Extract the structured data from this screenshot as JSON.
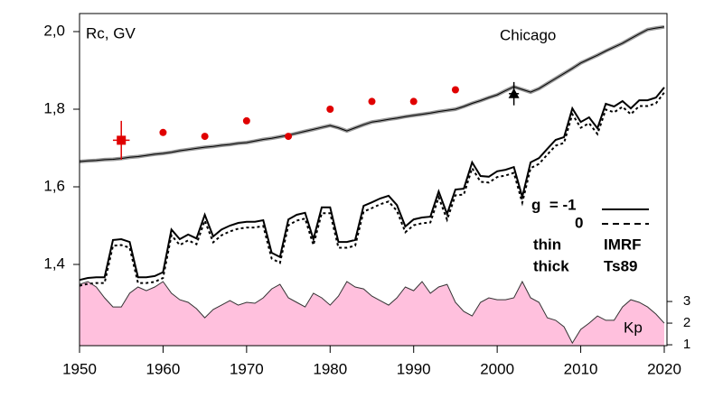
{
  "chart_data": {
    "type": "line",
    "annotations": {
      "ylabel": "Rc, GV",
      "station": "Chicago",
      "y2label": "Kp"
    },
    "legend": {
      "g": "g  = -1",
      "zero": "0",
      "thin": "thin",
      "thick": "thick",
      "thin_model": "IMRF",
      "thick_model": "Ts89"
    },
    "x": [
      1950,
      1951,
      1952,
      1953,
      1954,
      1955,
      1956,
      1957,
      1958,
      1959,
      1960,
      1961,
      1962,
      1963,
      1964,
      1965,
      1966,
      1967,
      1968,
      1969,
      1970,
      1971,
      1972,
      1973,
      1974,
      1975,
      1976,
      1977,
      1978,
      1979,
      1980,
      1981,
      1982,
      1983,
      1984,
      1985,
      1986,
      1987,
      1988,
      1989,
      1990,
      1991,
      1992,
      1993,
      1994,
      1995,
      1996,
      1997,
      1998,
      1999,
      2000,
      2001,
      2002,
      2003,
      2004,
      2005,
      2006,
      2007,
      2008,
      2009,
      2010,
      2011,
      2012,
      2013,
      2014,
      2015,
      2016,
      2017,
      2018,
      2019,
      2020
    ],
    "xlim": [
      1950,
      2020
    ],
    "xticks": [
      1950,
      1960,
      1970,
      1980,
      1990,
      2000,
      2010,
      2020
    ],
    "ylim": [
      1.1907,
      2.0465
    ],
    "yticks": [
      {
        "value": 1.4,
        "label": "1,4"
      },
      {
        "value": 1.6,
        "label": "1,6"
      },
      {
        "value": 1.8,
        "label": "1,8"
      },
      {
        "value": 2.0,
        "label": "2,0"
      }
    ],
    "y2lim": [
      0.96,
      16.3
    ],
    "y2ticks": [
      1,
      2,
      3
    ],
    "series": [
      {
        "color": "#000000",
        "style": "solid",
        "width": 1,
        "values": [
          1.665,
          1.667,
          1.668,
          1.67,
          1.671,
          1.673,
          1.676,
          1.678,
          1.681,
          1.684,
          1.686,
          1.689,
          1.693,
          1.696,
          1.699,
          1.702,
          1.704,
          1.707,
          1.709,
          1.712,
          1.714,
          1.718,
          1.722,
          1.725,
          1.729,
          1.733,
          1.738,
          1.743,
          1.748,
          1.753,
          1.758,
          1.752,
          1.744,
          1.752,
          1.76,
          1.767,
          1.77,
          1.774,
          1.777,
          1.781,
          1.784,
          1.787,
          1.79,
          1.794,
          1.797,
          1.8,
          1.807,
          1.815,
          1.822,
          1.83,
          1.837,
          1.848,
          1.858,
          1.851,
          1.844,
          1.853,
          1.866,
          1.879,
          1.892,
          1.905,
          1.919,
          1.929,
          1.939,
          1.95,
          1.96,
          1.97,
          1.982,
          1.994,
          2.005,
          2.009,
          2.012
        ]
      },
      {
        "color": "#000000",
        "style": "solid",
        "width": 2,
        "values": [
          1.36,
          1.365,
          1.367,
          1.367,
          1.463,
          1.465,
          1.458,
          1.367,
          1.367,
          1.37,
          1.38,
          1.49,
          1.465,
          1.477,
          1.467,
          1.528,
          1.472,
          1.49,
          1.5,
          1.507,
          1.51,
          1.51,
          1.514,
          1.43,
          1.419,
          1.516,
          1.528,
          1.533,
          1.465,
          1.547,
          1.547,
          1.458,
          1.458,
          1.463,
          1.551,
          1.56,
          1.57,
          1.577,
          1.553,
          1.498,
          1.516,
          1.521,
          1.523,
          1.588,
          1.53,
          1.593,
          1.595,
          1.663,
          1.628,
          1.626,
          1.64,
          1.644,
          1.651,
          1.574,
          1.663,
          1.674,
          1.698,
          1.721,
          1.728,
          1.802,
          1.767,
          1.779,
          1.751,
          1.814,
          1.807,
          1.821,
          1.802,
          1.823,
          1.823,
          1.83,
          1.856
        ]
      },
      {
        "color": "#000000",
        "style": "dashed",
        "width": 2,
        "values": [
          1.352,
          1.357,
          1.359,
          1.359,
          1.455,
          1.457,
          1.45,
          1.359,
          1.359,
          1.362,
          1.372,
          1.482,
          1.457,
          1.469,
          1.459,
          1.52,
          1.464,
          1.482,
          1.492,
          1.499,
          1.502,
          1.502,
          1.506,
          1.422,
          1.411,
          1.508,
          1.52,
          1.525,
          1.457,
          1.539,
          1.539,
          1.45,
          1.45,
          1.455,
          1.543,
          1.552,
          1.562,
          1.569,
          1.545,
          1.49,
          1.508,
          1.513,
          1.515,
          1.58,
          1.522,
          1.585,
          1.587,
          1.655,
          1.62,
          1.618,
          1.632,
          1.636,
          1.643,
          1.566,
          1.655,
          1.666,
          1.69,
          1.713,
          1.72,
          1.794,
          1.759,
          1.771,
          1.743,
          1.806,
          1.799,
          1.813,
          1.794,
          1.815,
          1.815,
          1.822,
          1.85
        ]
      },
      {
        "color": "#ffc0dd",
        "style": "area",
        "axis": "y2",
        "values": [
          3.79,
          3.92,
          3.67,
          3.17,
          2.75,
          2.75,
          3.38,
          3.67,
          3.5,
          3.67,
          3.92,
          3.38,
          3.08,
          2.96,
          2.67,
          2.25,
          2.63,
          2.83,
          3.04,
          2.83,
          2.96,
          2.92,
          3.17,
          3.58,
          3.79,
          3.17,
          2.96,
          2.75,
          3.38,
          3.17,
          2.83,
          3.25,
          3.92,
          3.67,
          3.58,
          3.25,
          3.04,
          2.83,
          3.17,
          3.67,
          3.5,
          3.92,
          3.38,
          3.67,
          3.79,
          2.96,
          2.54,
          2.33,
          2.96,
          3.17,
          3.08,
          3.08,
          3.17,
          3.92,
          3.17,
          2.96,
          2.25,
          2.13,
          1.83,
          1.08,
          1.71,
          2.0,
          2.33,
          2.13,
          2.13,
          2.75,
          3.08,
          2.96,
          2.75,
          2.42,
          2.0
        ]
      }
    ],
    "observations": {
      "color": "#e00000",
      "x": [
        1960,
        1965,
        1970,
        1975,
        1980,
        1985,
        1990,
        1995
      ],
      "values": [
        1.74,
        1.73,
        1.77,
        1.73,
        1.8,
        1.82,
        1.82,
        1.85
      ]
    },
    "square": {
      "color": "#e00000",
      "x": 1955,
      "value": 1.72,
      "error": 0.05,
      "xerror": 1
    },
    "triangle": {
      "color": "#000000",
      "x": 2002,
      "value": 1.84,
      "error": 0.03,
      "xerror": 0.6
    }
  }
}
